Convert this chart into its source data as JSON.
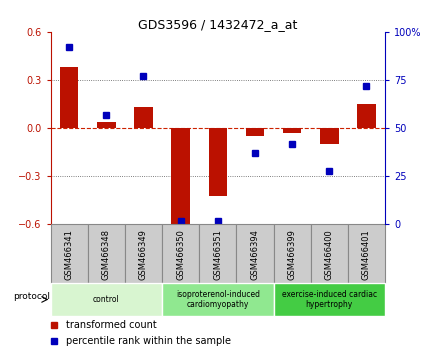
{
  "title": "GDS3596 / 1432472_a_at",
  "samples": [
    "GSM466341",
    "GSM466348",
    "GSM466349",
    "GSM466350",
    "GSM466351",
    "GSM466394",
    "GSM466399",
    "GSM466400",
    "GSM466401"
  ],
  "transformed_count": [
    0.38,
    0.04,
    0.13,
    -0.62,
    -0.42,
    -0.05,
    -0.03,
    -0.1,
    0.15
  ],
  "percentile_rank": [
    92,
    57,
    77,
    2,
    2,
    37,
    42,
    28,
    72
  ],
  "ylim_left": [
    -0.6,
    0.6
  ],
  "ylim_right": [
    0,
    100
  ],
  "yticks_left": [
    -0.6,
    -0.3,
    0.0,
    0.3,
    0.6
  ],
  "yticks_right": [
    0,
    25,
    50,
    75,
    100
  ],
  "bar_color": "#bb1100",
  "dot_color": "#0000bb",
  "zero_line_color": "#cc2200",
  "groups": [
    {
      "label": "control",
      "start": 0,
      "end": 3,
      "color": "#d8f5d0"
    },
    {
      "label": "isoproterenol-induced\ncardiomyopathy",
      "start": 3,
      "end": 6,
      "color": "#90e890"
    },
    {
      "label": "exercise-induced cardiac\nhypertrophy",
      "start": 6,
      "end": 9,
      "color": "#44cc44"
    }
  ],
  "protocol_label": "protocol",
  "legend_items": [
    {
      "label": "transformed count",
      "color": "#bb1100"
    },
    {
      "label": "percentile rank within the sample",
      "color": "#0000bb"
    }
  ],
  "grid_color": "#555555",
  "background_color": "#ffffff",
  "tick_label_fontsize": 7,
  "bar_width": 0.5,
  "sample_box_color": "#cccccc",
  "sample_box_edge": "#888888"
}
